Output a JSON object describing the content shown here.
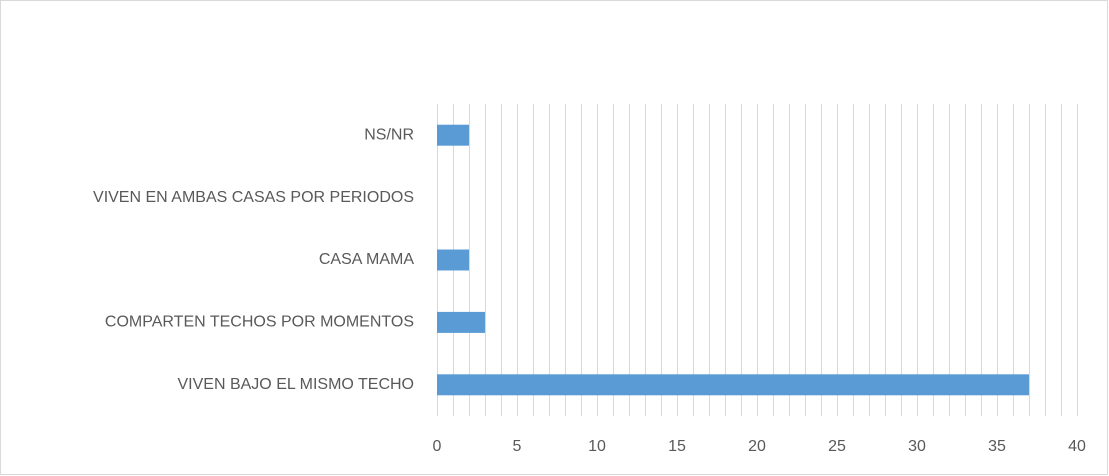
{
  "chart_data": {
    "type": "barh",
    "categories": [
      "NS/NR",
      "VIVEN EN AMBAS CASAS POR PERIODOS",
      "CASA MAMA",
      "COMPARTEN TECHOS POR MOMENTOS",
      "VIVEN BAJO EL MISMO TECHO"
    ],
    "values": [
      2,
      0,
      2,
      3,
      37
    ],
    "color": "#5b9bd5",
    "xlim": [
      0,
      40
    ],
    "xticks": [
      0,
      5,
      10,
      15,
      20,
      25,
      30,
      35,
      40
    ],
    "xgrid": [
      0,
      1,
      2,
      3,
      4,
      5,
      6,
      7,
      8,
      9,
      10,
      11,
      12,
      13,
      14,
      15,
      16,
      17,
      18,
      19,
      20,
      21,
      22,
      23,
      24,
      25,
      26,
      27,
      28,
      29,
      30,
      31,
      32,
      33,
      34,
      35,
      36,
      37,
      38,
      39,
      40
    ],
    "grid": true
  }
}
